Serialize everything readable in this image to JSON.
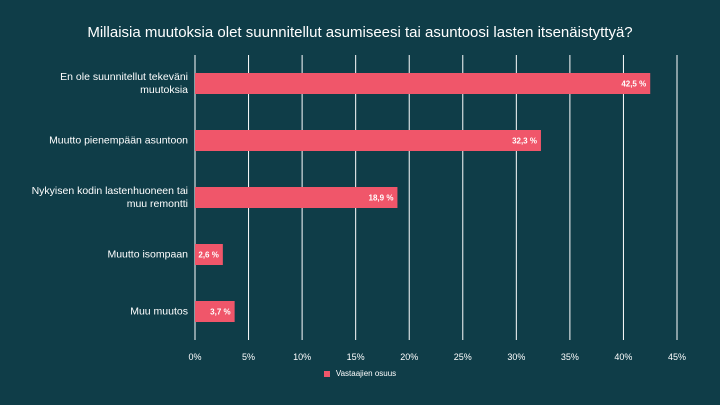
{
  "chart_data": {
    "type": "bar",
    "orientation": "horizontal",
    "title": "Millaisia muutoksia olet suunnitellut asumiseesi tai asuntoosi lasten itsenäistyttyä?",
    "categories": [
      "En ole suunnitellut tekeväni muutoksia",
      "Muutto pienempään asuntoon",
      "Nykyisen kodin lastenhuoneen tai muu remontti",
      "Muutto isompaan",
      "Muu muutos"
    ],
    "series": [
      {
        "name": "Vastaajien osuus",
        "values": [
          42.5,
          32.3,
          18.9,
          2.6,
          3.7
        ],
        "labels": [
          "42,5 %",
          "32,3 %",
          "18,9 %",
          "2,6 %",
          "3,7 %"
        ]
      }
    ],
    "xlim": [
      0,
      45
    ],
    "xticks": [
      "0%",
      "5%",
      "10%",
      "15%",
      "20%",
      "25%",
      "30%",
      "35%",
      "40%",
      "45%"
    ],
    "grid": true,
    "legend_position": "bottom",
    "colors": {
      "background": "#0f3d48",
      "bar": "#f0566a",
      "grid": "#ffffff",
      "text": "#ffffff"
    }
  }
}
